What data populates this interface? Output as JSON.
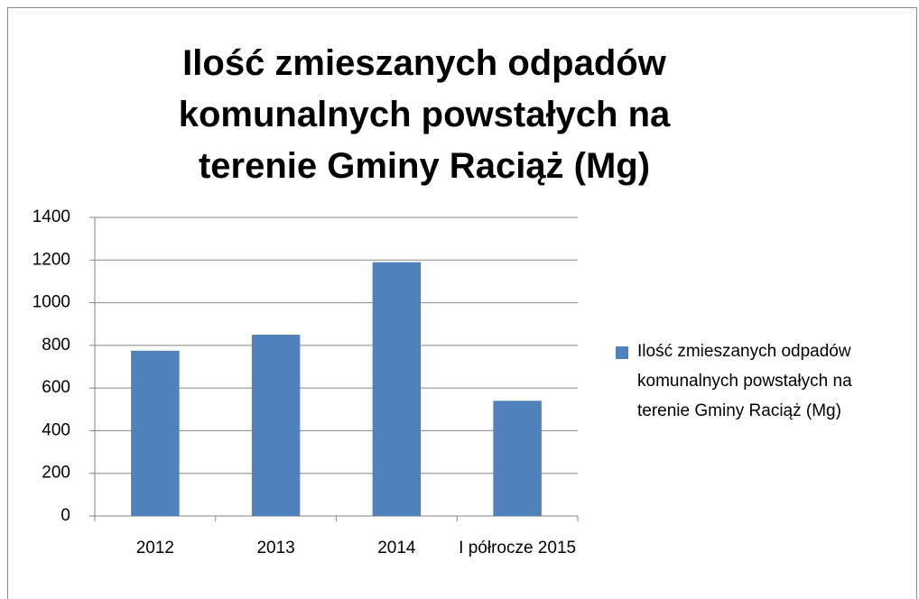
{
  "chart_data": {
    "type": "bar",
    "title": "Ilość zmieszanych odpadów komunalnych powstałych na terenie Gminy Raciąż (Mg)",
    "categories": [
      "2012",
      "2013",
      "2014",
      "I półrocze 2015"
    ],
    "series": [
      {
        "name": "Ilość zmieszanych odpadów komunalnych powstałych na terenie Gminy Raciąż (Mg)",
        "color": "#4f81bd",
        "values": [
          775,
          850,
          1190,
          540
        ]
      }
    ],
    "ylim": [
      0,
      1400
    ],
    "yticks": [
      0,
      200,
      400,
      600,
      800,
      1000,
      1200,
      1400
    ],
    "grid": true,
    "legend": "right"
  }
}
